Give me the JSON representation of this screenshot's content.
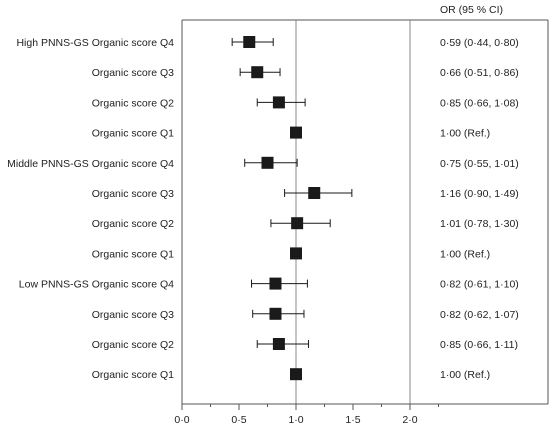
{
  "chart_data": {
    "type": "scatter",
    "subtype": "forest-plot",
    "or_header": "OR (95 % CI)",
    "x_ticks": [
      "0·0",
      "0·5",
      "1·0",
      "1·5",
      "2·0"
    ],
    "x_tick_values": [
      0,
      0.5,
      1.0,
      1.5,
      2.0
    ],
    "xlim": [
      0,
      2.5
    ],
    "reference_lines": [
      1.0,
      2.0
    ],
    "rows": [
      {
        "label": "High PNNS-GS Organic score Q4",
        "or": 0.59,
        "lo": 0.44,
        "hi": 0.8,
        "text": "0·59 (0·44, 0·80)"
      },
      {
        "label": "Organic score Q3",
        "or": 0.66,
        "lo": 0.51,
        "hi": 0.86,
        "text": "0·66 (0·51, 0·86)"
      },
      {
        "label": "Organic score Q2",
        "or": 0.85,
        "lo": 0.66,
        "hi": 1.08,
        "text": "0·85 (0·66, 1·08)"
      },
      {
        "label": "Organic score Q1",
        "or": 1.0,
        "lo": 1.0,
        "hi": 1.0,
        "text": "1·00 (Ref.)"
      },
      {
        "label": "Middle PNNS-GS Organic score Q4",
        "or": 0.75,
        "lo": 0.55,
        "hi": 1.01,
        "text": "0·75 (0·55, 1·01)"
      },
      {
        "label": "Organic score Q3",
        "or": 1.16,
        "lo": 0.9,
        "hi": 1.49,
        "text": "1·16 (0·90, 1·49)"
      },
      {
        "label": "Organic score Q2",
        "or": 1.01,
        "lo": 0.78,
        "hi": 1.3,
        "text": "1·01 (0·78, 1·30)"
      },
      {
        "label": "Organic score Q1",
        "or": 1.0,
        "lo": 1.0,
        "hi": 1.0,
        "text": "1·00 (Ref.)"
      },
      {
        "label": "Low PNNS-GS Organic score Q4",
        "or": 0.82,
        "lo": 0.61,
        "hi": 1.1,
        "text": "0·82 (0·61, 1·10)"
      },
      {
        "label": "Organic score Q3",
        "or": 0.82,
        "lo": 0.62,
        "hi": 1.07,
        "text": "0·82 (0·62, 1·07)"
      },
      {
        "label": "Organic score Q2",
        "or": 0.85,
        "lo": 0.66,
        "hi": 1.11,
        "text": "0·85 (0·66, 1·11)"
      },
      {
        "label": "Organic score Q1",
        "or": 1.0,
        "lo": 1.0,
        "hi": 1.0,
        "text": "1·00 (Ref.)"
      }
    ],
    "colors": {
      "marker": "#1a1a1a",
      "frame": "#555555",
      "ref_line": "#888888"
    }
  }
}
